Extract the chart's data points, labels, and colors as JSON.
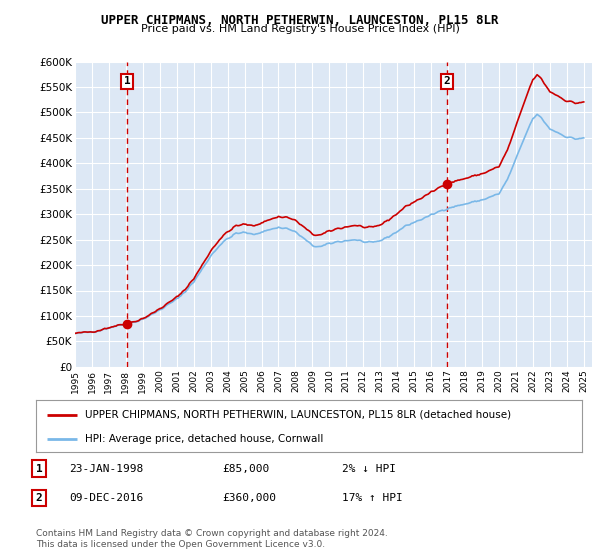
{
  "title": "UPPER CHIPMANS, NORTH PETHERWIN, LAUNCESTON, PL15 8LR",
  "subtitle": "Price paid vs. HM Land Registry's House Price Index (HPI)",
  "legend_line1": "UPPER CHIPMANS, NORTH PETHERWIN, LAUNCESTON, PL15 8LR (detached house)",
  "legend_line2": "HPI: Average price, detached house, Cornwall",
  "annotation1_date": "23-JAN-1998",
  "annotation1_price": "£85,000",
  "annotation1_hpi": "2% ↓ HPI",
  "annotation2_date": "09-DEC-2016",
  "annotation2_price": "£360,000",
  "annotation2_hpi": "17% ↑ HPI",
  "copyright": "Contains HM Land Registry data © Crown copyright and database right 2024.\nThis data is licensed under the Open Government Licence v3.0.",
  "sale1_x": 1998.07,
  "sale1_y": 85000,
  "sale2_x": 2016.93,
  "sale2_y": 360000,
  "hpi_color": "#7ab8e8",
  "price_color": "#cc0000",
  "vline_color": "#cc0000",
  "bg_color": "#dde8f5",
  "plot_bg": "#ffffff",
  "grid_color": "#ffffff",
  "ylim": [
    0,
    600000
  ],
  "xlim_start": 1995.0,
  "xlim_end": 2025.5,
  "yticks": [
    0,
    50000,
    100000,
    150000,
    200000,
    250000,
    300000,
    350000,
    400000,
    450000,
    500000,
    550000,
    600000
  ],
  "ytick_labels": [
    "£0",
    "£50K",
    "£100K",
    "£150K",
    "£200K",
    "£250K",
    "£300K",
    "£350K",
    "£400K",
    "£450K",
    "£500K",
    "£550K",
    "£600K"
  ]
}
